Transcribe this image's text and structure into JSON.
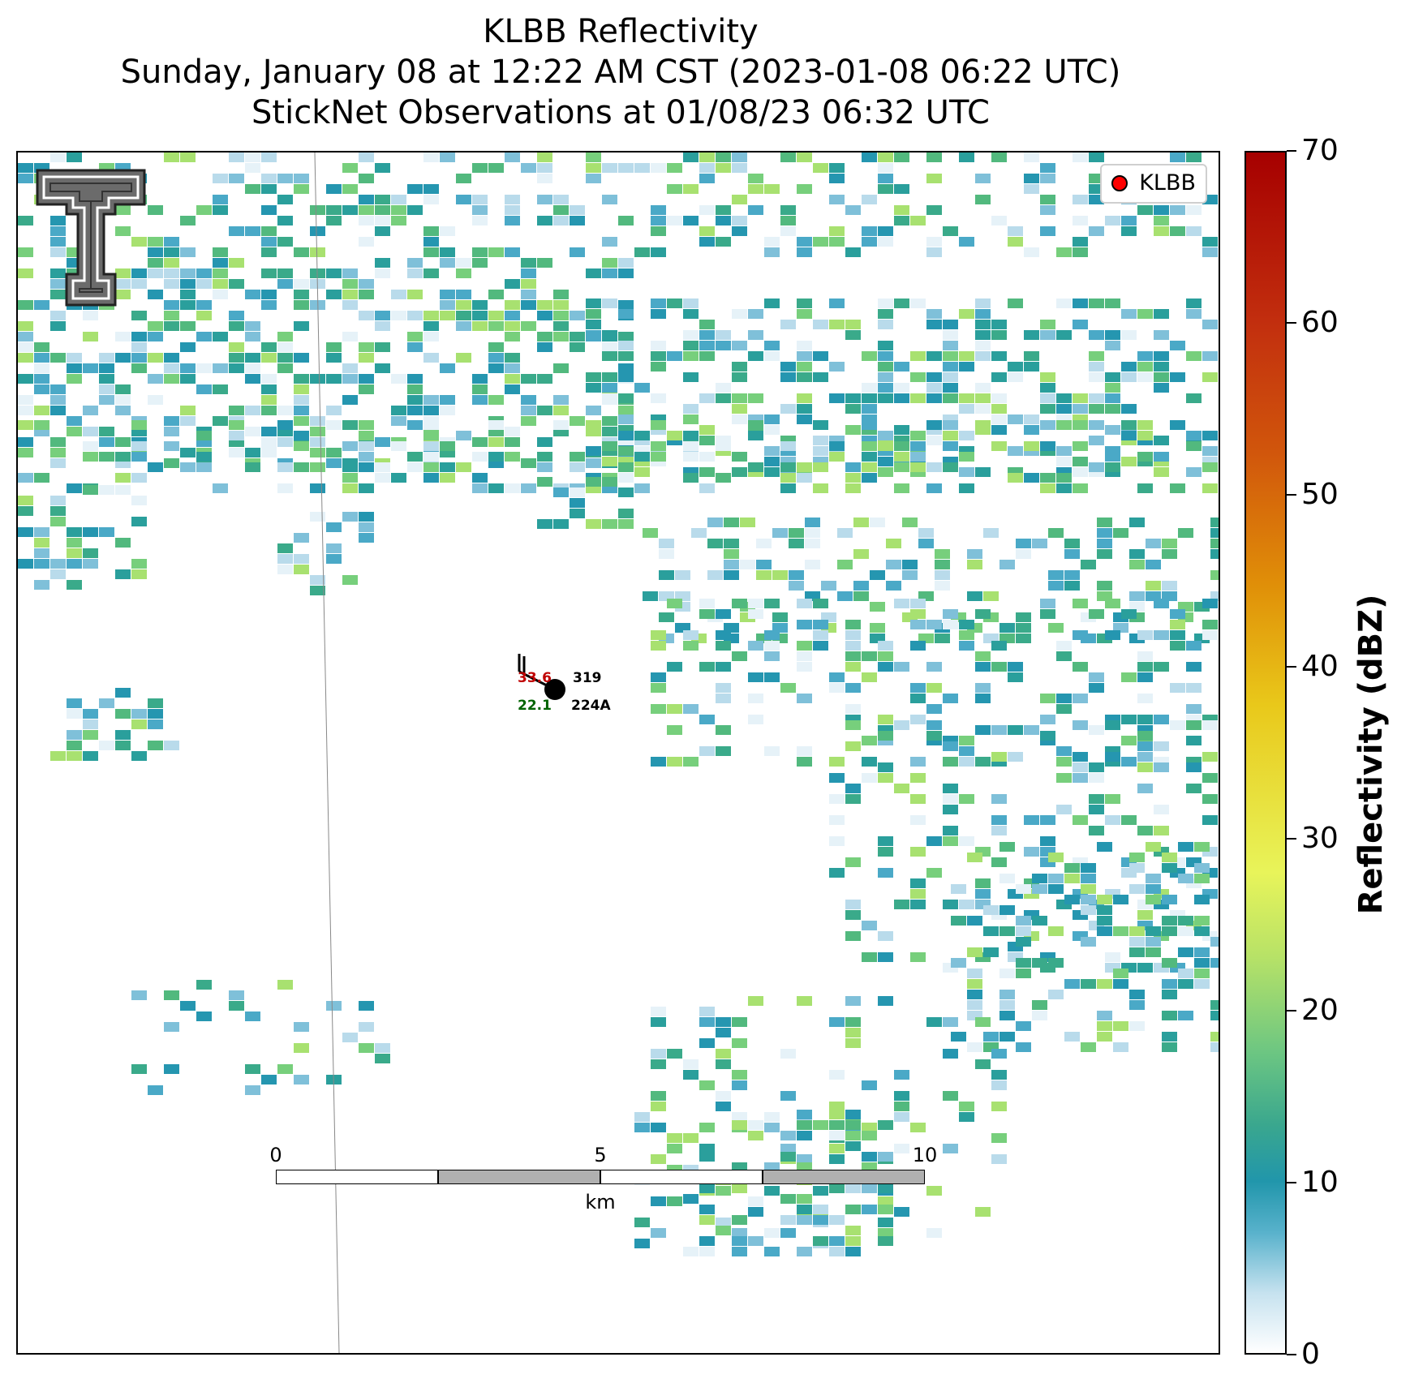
{
  "title": {
    "line1": "KLBB Reflectivity",
    "line2": "Sunday, January 08 at 12:22 AM CST (2023-01-08 06:22 UTC)",
    "line3": "StickNet Observations at 01/08/23 06:32 UTC"
  },
  "legend": {
    "label": "KLBB",
    "marker_color": "#ff0000"
  },
  "logo": {
    "icon": "texas-tech-double-t-logo"
  },
  "station": {
    "id": "224A",
    "temperature": "33.6",
    "dewpoint": "22.1",
    "pressure": "319",
    "temperature_color": "#c00000",
    "dewpoint_color": "#006400"
  },
  "scalebar": {
    "ticks": [
      "0",
      "5",
      "10"
    ],
    "unit": "km"
  },
  "colorbar": {
    "label": "Reflectivity (dBZ)",
    "ticks": [
      "0",
      "10",
      "20",
      "30",
      "40",
      "50",
      "60",
      "70"
    ],
    "range": [
      0,
      70
    ]
  },
  "radar": {
    "palette": [
      "#e6f2f8",
      "#b9dbeb",
      "#7fc0d9",
      "#4aa9c7",
      "#2596b0",
      "#2a9f9c",
      "#3aaa8a",
      "#52b97e",
      "#77cf7c",
      "#a8e170"
    ]
  }
}
